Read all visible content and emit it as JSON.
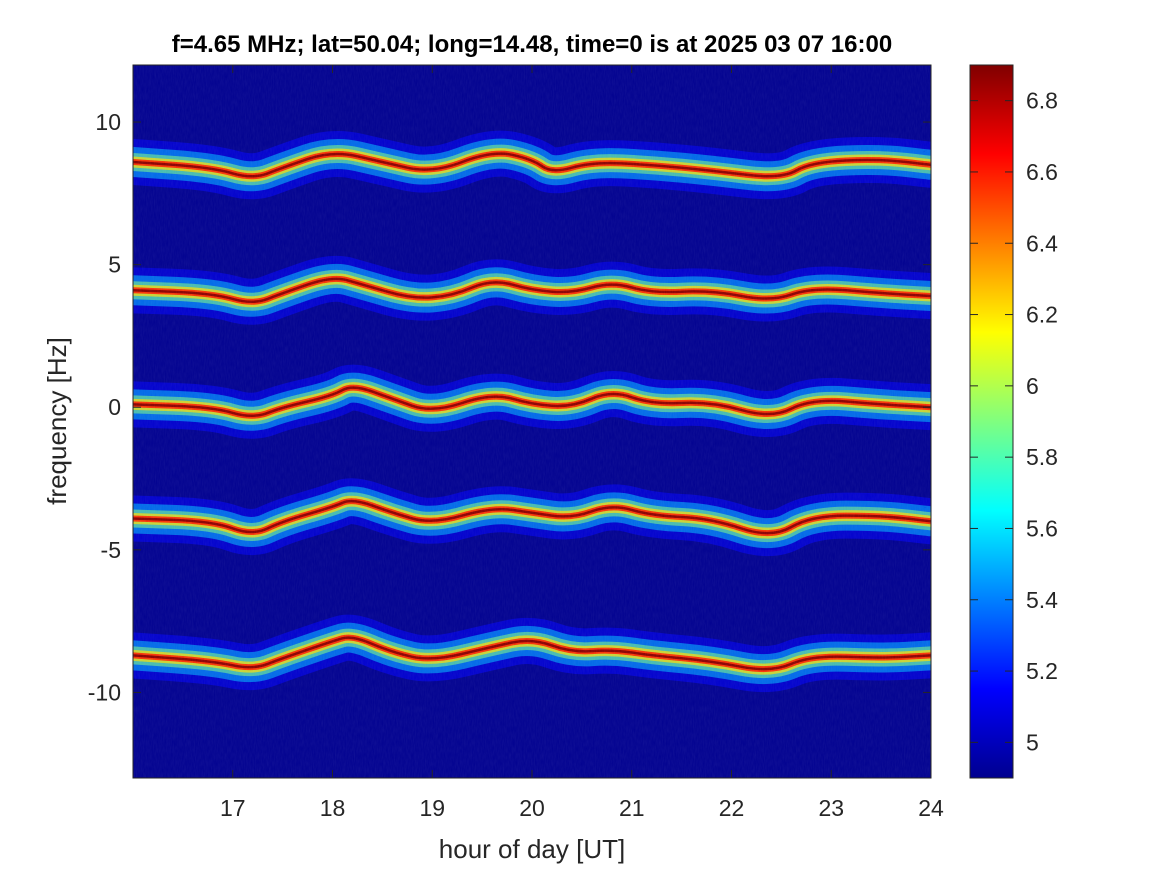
{
  "chart_data": {
    "type": "heatmap",
    "title": "f=4.65 MHz;  lat=50.04; long=14.48, time=0 is at 2025 03 07 16:00",
    "xlabel": "hour of day [UT]",
    "ylabel": "frequency [Hz]",
    "xlim": [
      16,
      24
    ],
    "ylim": [
      -13,
      12
    ],
    "xticks": [
      "17",
      "18",
      "19",
      "20",
      "21",
      "22",
      "23",
      "24"
    ],
    "xtick_values": [
      17,
      18,
      19,
      20,
      21,
      22,
      23,
      24
    ],
    "yticks": [
      "10",
      "5",
      "0",
      "-5",
      "-10"
    ],
    "ytick_values": [
      10,
      5,
      0,
      -5,
      -10
    ],
    "colorbar": {
      "clim": [
        4.9,
        6.9
      ],
      "ticks": [
        "6.8",
        "6.6",
        "6.4",
        "6.2",
        "6",
        "5.8",
        "5.6",
        "5.4",
        "5.2",
        "5"
      ],
      "tick_values": [
        6.8,
        6.6,
        6.4,
        6.2,
        6.0,
        5.8,
        5.6,
        5.4,
        5.2,
        5.0
      ],
      "colormap": "jet"
    },
    "background_color": "#00008F",
    "traces": [
      {
        "baseline_hz": 8.6,
        "points": [
          [
            16.0,
            8.6
          ],
          [
            16.8,
            8.4
          ],
          [
            17.2,
            8.0
          ],
          [
            17.5,
            8.4
          ],
          [
            18.0,
            9.0
          ],
          [
            18.5,
            8.6
          ],
          [
            19.0,
            8.2
          ],
          [
            19.6,
            9.0
          ],
          [
            20.0,
            8.7
          ],
          [
            20.2,
            8.2
          ],
          [
            20.6,
            8.6
          ],
          [
            21.2,
            8.5
          ],
          [
            21.8,
            8.3
          ],
          [
            22.5,
            8.0
          ],
          [
            22.8,
            8.6
          ],
          [
            23.5,
            8.7
          ],
          [
            24.0,
            8.5
          ]
        ]
      },
      {
        "baseline_hz": 4.1,
        "points": [
          [
            16.0,
            4.1
          ],
          [
            16.8,
            4.0
          ],
          [
            17.2,
            3.6
          ],
          [
            17.5,
            4.0
          ],
          [
            18.0,
            4.6
          ],
          [
            18.3,
            4.3
          ],
          [
            18.8,
            3.8
          ],
          [
            19.2,
            3.9
          ],
          [
            19.6,
            4.5
          ],
          [
            20.0,
            4.1
          ],
          [
            20.4,
            4.0
          ],
          [
            20.8,
            4.4
          ],
          [
            21.2,
            4.0
          ],
          [
            21.8,
            4.1
          ],
          [
            22.4,
            3.7
          ],
          [
            22.8,
            4.2
          ],
          [
            23.5,
            4.0
          ],
          [
            24.0,
            3.9
          ]
        ]
      },
      {
        "baseline_hz": 0.1,
        "points": [
          [
            16.0,
            0.1
          ],
          [
            16.8,
            0.0
          ],
          [
            17.2,
            -0.4
          ],
          [
            17.5,
            0.0
          ],
          [
            18.0,
            0.4
          ],
          [
            18.2,
            0.8
          ],
          [
            18.6,
            0.3
          ],
          [
            19.0,
            -0.2
          ],
          [
            19.6,
            0.5
          ],
          [
            20.0,
            0.1
          ],
          [
            20.4,
            0.0
          ],
          [
            20.8,
            0.6
          ],
          [
            21.2,
            0.1
          ],
          [
            21.8,
            0.2
          ],
          [
            22.4,
            -0.4
          ],
          [
            22.8,
            0.3
          ],
          [
            23.5,
            0.1
          ],
          [
            24.0,
            0.0
          ]
        ]
      },
      {
        "baseline_hz": -3.9,
        "points": [
          [
            16.0,
            -3.9
          ],
          [
            16.8,
            -4.0
          ],
          [
            17.2,
            -4.5
          ],
          [
            17.5,
            -4.0
          ],
          [
            18.0,
            -3.5
          ],
          [
            18.2,
            -3.2
          ],
          [
            18.6,
            -3.7
          ],
          [
            19.0,
            -4.1
          ],
          [
            19.6,
            -3.5
          ],
          [
            20.0,
            -3.7
          ],
          [
            20.4,
            -3.9
          ],
          [
            20.8,
            -3.4
          ],
          [
            21.2,
            -3.8
          ],
          [
            21.8,
            -3.9
          ],
          [
            22.4,
            -4.6
          ],
          [
            22.8,
            -3.8
          ],
          [
            23.5,
            -3.8
          ],
          [
            24.0,
            -4.0
          ]
        ]
      },
      {
        "baseline_hz": -8.8,
        "points": [
          [
            16.0,
            -8.7
          ],
          [
            16.8,
            -8.9
          ],
          [
            17.2,
            -9.2
          ],
          [
            17.5,
            -8.8
          ],
          [
            18.0,
            -8.2
          ],
          [
            18.2,
            -8.0
          ],
          [
            18.6,
            -8.6
          ],
          [
            19.0,
            -8.9
          ],
          [
            19.6,
            -8.4
          ],
          [
            20.0,
            -8.1
          ],
          [
            20.4,
            -8.6
          ],
          [
            20.8,
            -8.5
          ],
          [
            21.2,
            -8.7
          ],
          [
            21.8,
            -8.9
          ],
          [
            22.4,
            -9.3
          ],
          [
            22.8,
            -8.7
          ],
          [
            23.5,
            -8.8
          ],
          [
            24.0,
            -8.7
          ]
        ]
      }
    ]
  }
}
